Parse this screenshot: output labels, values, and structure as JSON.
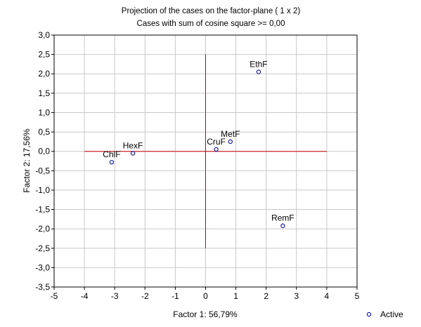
{
  "chart_data": {
    "type": "scatter",
    "title": "Projection of the cases on the factor-plane ( 1 x 2)",
    "subtitle": "Cases with sum of cosine square >= 0,00",
    "xlabel": "Factor 1: 56,79%",
    "ylabel": "Factor 2: 17,56%",
    "xlim": [
      -5,
      5
    ],
    "ylim": [
      -3.5,
      3.0
    ],
    "x_ticks": [
      -5,
      -4,
      -3,
      -2,
      -1,
      0,
      1,
      2,
      3,
      4,
      5
    ],
    "x_tick_labels": [
      "-5",
      "-4",
      "-3",
      "-2",
      "-1",
      "0",
      "1",
      "2",
      "3",
      "4",
      "5"
    ],
    "y_ticks": [
      3.0,
      2.5,
      2.0,
      1.5,
      1.0,
      0.5,
      0.0,
      -0.5,
      -1.0,
      -1.5,
      -2.0,
      -2.5,
      -3.0,
      -3.5
    ],
    "y_tick_labels": [
      "3,0",
      "2,5",
      "2,0",
      "1,5",
      "1,0",
      "0,5",
      "0,0",
      "-0,5",
      "-1,0",
      "-1,5",
      "-2,0",
      "-2,5",
      "-3,0",
      "-3,5"
    ],
    "grid": true,
    "legend": {
      "position": "bottom-right",
      "entries": [
        "Active"
      ]
    },
    "reference_lines": {
      "horizontal": {
        "y": 0,
        "x_range": [
          -4,
          4
        ]
      },
      "vertical": {
        "x": 0,
        "y_range": [
          -2.5,
          2.5
        ]
      }
    },
    "colors": {
      "points": "#1a1aa6",
      "reference": "#cc0000",
      "grid": "#c8c8c8"
    },
    "series": [
      {
        "name": "Active",
        "points": [
          {
            "label": "EthF",
            "x": 1.75,
            "y": 2.05
          },
          {
            "label": "MetF",
            "x": 0.82,
            "y": 0.25
          },
          {
            "label": "CruF",
            "x": 0.35,
            "y": 0.05
          },
          {
            "label": "HexF",
            "x": -2.4,
            "y": -0.05
          },
          {
            "label": "ChlF",
            "x": -3.1,
            "y": -0.28
          },
          {
            "label": "RemF",
            "x": 2.55,
            "y": -1.92
          }
        ]
      }
    ]
  }
}
